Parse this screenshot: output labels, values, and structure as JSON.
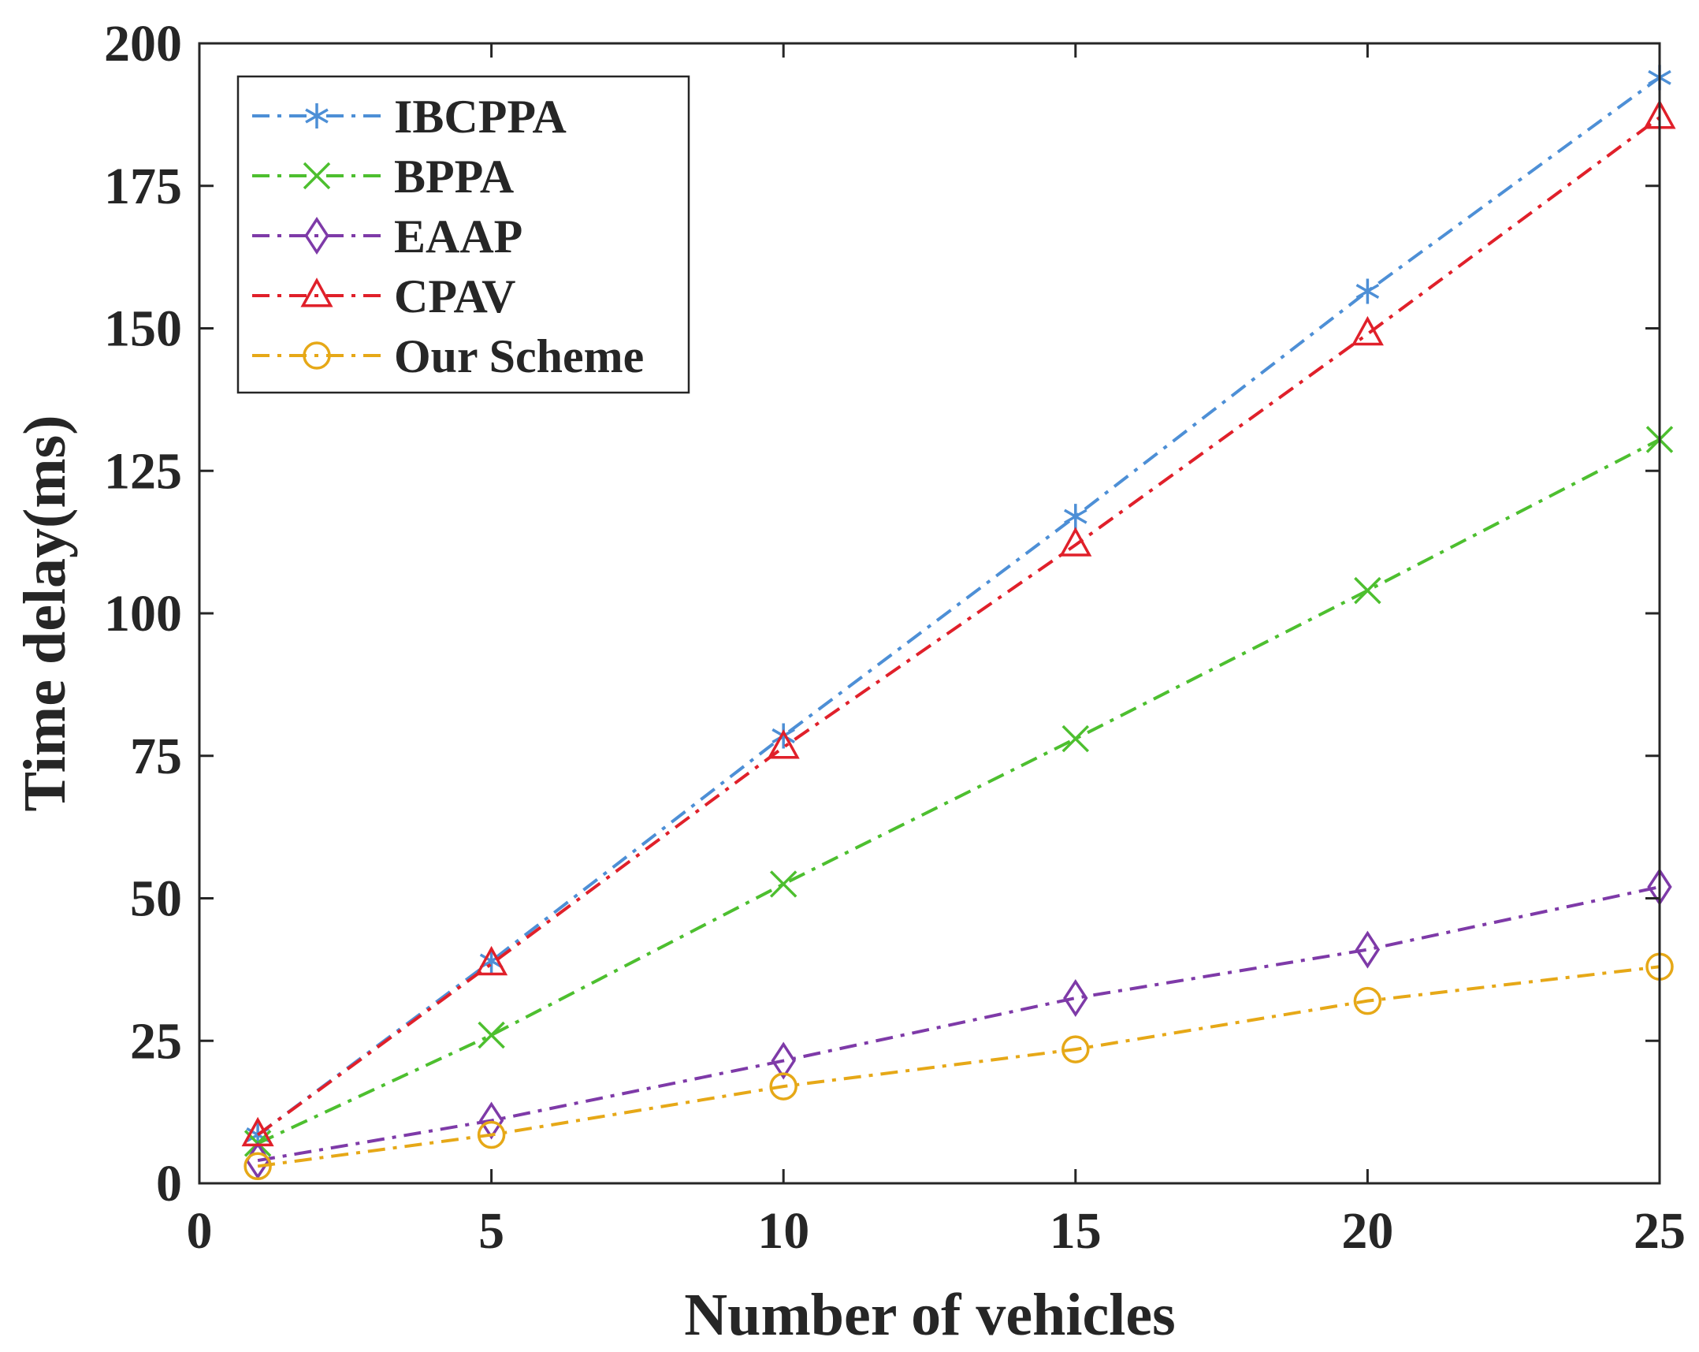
{
  "chart_data": {
    "type": "line",
    "title": "",
    "xlabel": "Number of vehicles",
    "ylabel": "Time delay(ms)",
    "xlim": [
      0,
      25
    ],
    "ylim": [
      0,
      200
    ],
    "x_ticks": [
      "0",
      "5",
      "10",
      "15",
      "20",
      "25"
    ],
    "y_ticks": [
      "0",
      "25",
      "50",
      "75",
      "100",
      "125",
      "150",
      "175",
      "200"
    ],
    "x_tick_values": [
      0,
      5,
      10,
      15,
      20,
      25
    ],
    "y_tick_values": [
      0,
      25,
      50,
      75,
      100,
      125,
      150,
      175,
      200
    ],
    "grid": false,
    "legend_position": "top-left",
    "x": [
      1,
      5,
      10,
      15,
      20,
      25
    ],
    "series": [
      {
        "name": "IBCPPA",
        "color": "#4d8fd6",
        "marker": "asterisk",
        "values": [
          8.5,
          39,
          78.5,
          117,
          156.5,
          194
        ]
      },
      {
        "name": "BPPA",
        "color": "#4dbf2f",
        "marker": "x",
        "values": [
          7,
          26,
          52.5,
          78,
          104,
          130.5
        ]
      },
      {
        "name": "EAAP",
        "color": "#7e3aa8",
        "marker": "diamond",
        "values": [
          4,
          11,
          21.5,
          32.5,
          41,
          52
        ]
      },
      {
        "name": "CPAV",
        "color": "#e0202a",
        "marker": "triangle",
        "values": [
          8.5,
          38.5,
          76.5,
          112,
          149,
          187
        ]
      },
      {
        "name": "Our Scheme",
        "color": "#e6a817",
        "marker": "circle",
        "values": [
          3,
          8.5,
          17,
          23.5,
          32,
          38
        ]
      }
    ]
  }
}
